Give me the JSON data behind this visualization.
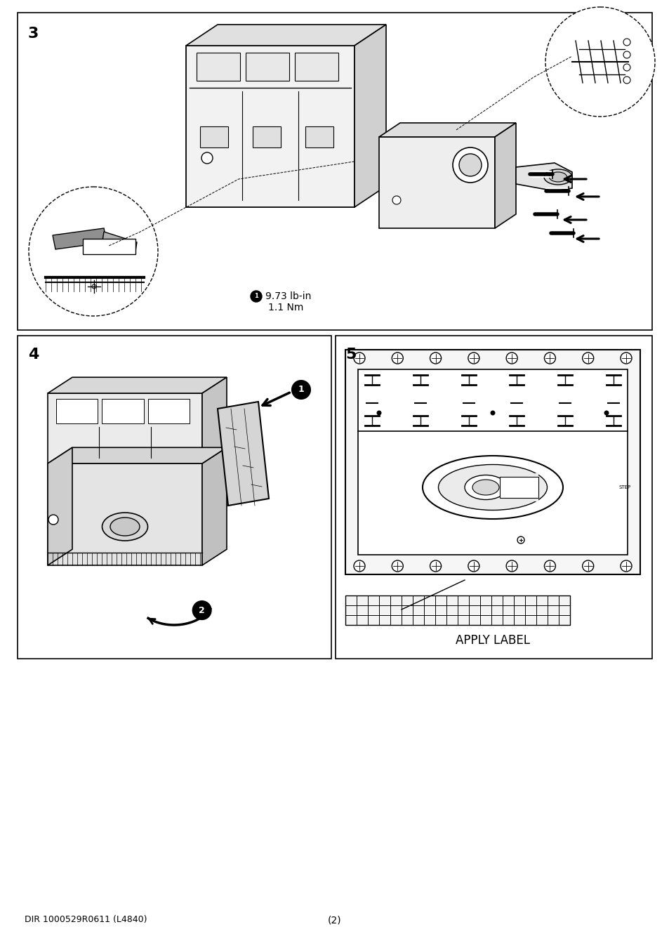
{
  "page_bg": "#ffffff",
  "border_color": "#000000",
  "text_color": "#000000",
  "panel3_label": "3",
  "panel4_label": "4",
  "panel5_label": "5",
  "torque_line1": "① 9.73 lb-in",
  "torque_line2": "1.1 Nm",
  "apply_label": "APPLY LABEL",
  "footer_left": "DIR 1000529R0611 (L4840)",
  "footer_center": "(2)"
}
